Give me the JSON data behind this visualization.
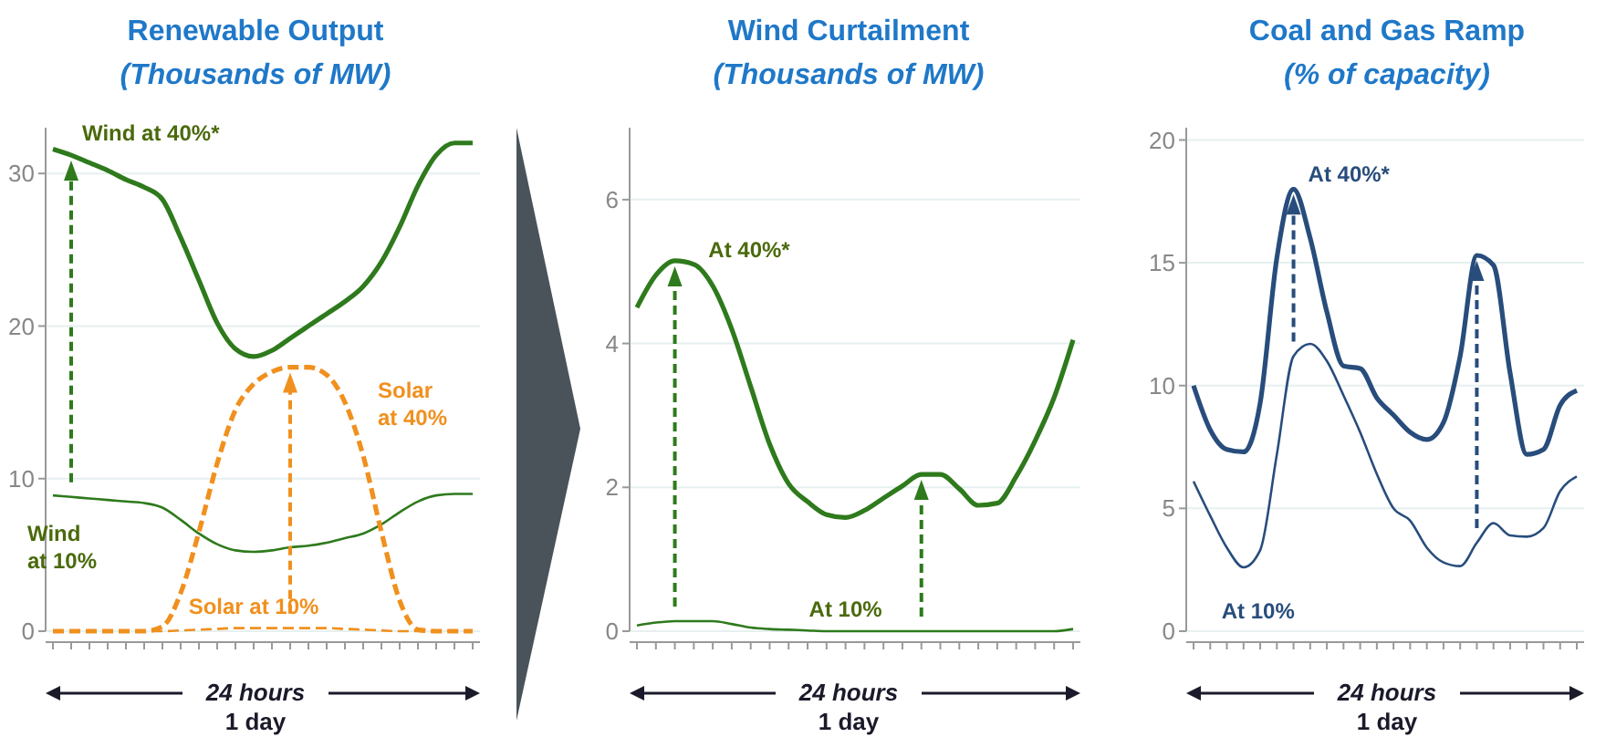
{
  "chart_data": [
    {
      "type": "line",
      "title": "Renewable Output",
      "subtitle": "(Thousands of MW)",
      "xlabel": "24 hours",
      "annotations": [
        "1 day"
      ],
      "categories": [
        null,
        null,
        null,
        null,
        null,
        null,
        null,
        null,
        null,
        null,
        null,
        null,
        null,
        null,
        null,
        null,
        null,
        null,
        null,
        null,
        null,
        null,
        null,
        null
      ],
      "ylim": [
        0,
        33
      ],
      "yticks": [
        0,
        10,
        20,
        30
      ],
      "grid": "y",
      "tick_labels": "y",
      "legend": false,
      "marker": "none",
      "series": [
        {
          "name": "Wind at 40%*",
          "color": "#2e7a1c",
          "line_style": "solid",
          "values": [
            31.6,
            31.2,
            30.7,
            30.2,
            29.6,
            29.1,
            28.3,
            25.8,
            23,
            20.2,
            18.5,
            18,
            18.4,
            19.2,
            20,
            20.8,
            21.6,
            22.6,
            24.2,
            26.5,
            29.2,
            31.2,
            32,
            32
          ]
        },
        {
          "name": "Wind at 10%",
          "color": "#2e7a1c",
          "line_style": "solid",
          "values": [
            8.9,
            8.8,
            8.7,
            8.6,
            8.5,
            8.4,
            8.1,
            7.3,
            6.4,
            5.7,
            5.3,
            5.2,
            5.3,
            5.5,
            5.6,
            5.8,
            6.1,
            6.4,
            7,
            7.8,
            8.5,
            8.9,
            9,
            9
          ]
        },
        {
          "name": "Solar at 40%",
          "color": "#f0901e",
          "line_style": "dashed",
          "values": [
            0,
            0,
            0,
            0,
            0,
            0,
            0.3,
            2.5,
            6.5,
            11,
            14.5,
            16.2,
            17,
            17.3,
            17.3,
            16.8,
            15,
            11.5,
            6.5,
            2,
            0.1,
            0,
            0,
            0
          ]
        },
        {
          "name": "Solar at 10%",
          "color": "#f0901e",
          "line_style": "dashed",
          "values": [
            0,
            0,
            0,
            0,
            0,
            0,
            0,
            0.05,
            0.1,
            0.15,
            0.2,
            0.2,
            0.2,
            0.2,
            0.2,
            0.2,
            0.15,
            0.1,
            0.05,
            0,
            0,
            0,
            0,
            0
          ]
        }
      ]
    },
    {
      "type": "line",
      "title": "Wind Curtailment",
      "subtitle": "(Thousands of MW)",
      "xlabel": "24 hours",
      "annotations": [
        "1 day"
      ],
      "categories": [
        null,
        null,
        null,
        null,
        null,
        null,
        null,
        null,
        null,
        null,
        null,
        null,
        null,
        null,
        null,
        null,
        null,
        null,
        null,
        null,
        null,
        null,
        null,
        null
      ],
      "ylim": [
        0,
        7
      ],
      "yticks": [
        0,
        2,
        4,
        6
      ],
      "grid": "y",
      "tick_labels": "y",
      "legend": false,
      "marker": "none",
      "series": [
        {
          "name": "At 40%*",
          "color": "#2e7a1c",
          "line_style": "solid",
          "values": [
            4.5,
            4.95,
            5.15,
            5.1,
            4.8,
            4.2,
            3.4,
            2.6,
            2.05,
            1.8,
            1.62,
            1.58,
            1.68,
            1.85,
            2.02,
            2.18,
            2.18,
            1.98,
            1.75,
            1.78,
            2.15,
            2.65,
            3.25,
            4.05
          ]
        },
        {
          "name": "At 10%",
          "color": "#2e7a1c",
          "line_style": "solid",
          "values": [
            0.08,
            0.12,
            0.14,
            0.14,
            0.14,
            0.1,
            0.05,
            0.03,
            0.02,
            0.01,
            0,
            0,
            0,
            0,
            0,
            0,
            0,
            0,
            0,
            0,
            0,
            0,
            0,
            0.03
          ]
        }
      ]
    },
    {
      "type": "line",
      "title": "Coal and Gas Ramp",
      "subtitle": "(% of capacity)",
      "xlabel": "24 hours",
      "annotations": [
        "1 day"
      ],
      "categories": [
        null,
        null,
        null,
        null,
        null,
        null,
        null,
        null,
        null,
        null,
        null,
        null,
        null,
        null,
        null,
        null,
        null,
        null,
        null,
        null,
        null,
        null,
        null,
        null
      ],
      "ylim": [
        0,
        20.5
      ],
      "yticks": [
        0,
        5,
        10,
        15,
        20
      ],
      "grid": "y",
      "tick_labels": "y",
      "legend": false,
      "marker": "none",
      "series": [
        {
          "name": "At 40%*",
          "color": "#284d7c",
          "line_style": "solid",
          "values": [
            10,
            8.2,
            7.4,
            7.3,
            9.3,
            15.2,
            18,
            16,
            13,
            10.8,
            10.7,
            9.5,
            8.8,
            8.1,
            7.8,
            8.5,
            11.2,
            15.3,
            14.9,
            10.5,
            7.2,
            7.4,
            9.2,
            9.8
          ]
        },
        {
          "name": "At 10%",
          "color": "#284d7c",
          "line_style": "solid",
          "values": [
            6.1,
            4.7,
            3.4,
            2.6,
            3.3,
            7.2,
            11.2,
            11.7,
            11,
            9.6,
            8.1,
            6.4,
            5,
            4.5,
            3.4,
            2.8,
            2.65,
            3.6,
            4.4,
            3.9,
            3.85,
            4.2,
            5.7,
            6.3
          ]
        }
      ]
    }
  ]
}
